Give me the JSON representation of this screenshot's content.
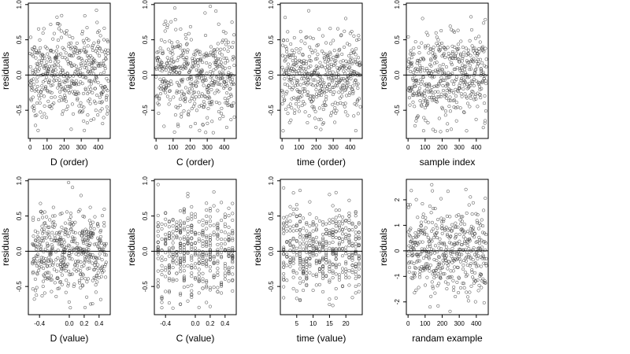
{
  "figure": {
    "layout": "2 rows x 4 columns of residual scatter plots"
  },
  "chart_data": [
    {
      "type": "scatter",
      "xlabel": "D (order)",
      "ylabel": "residuals",
      "xlim": [
        -10,
        470
      ],
      "ylim": [
        -0.9,
        1.02
      ],
      "xticks": [
        0,
        100,
        200,
        300,
        400
      ],
      "xtick_labels": [
        "0",
        "100",
        "200",
        "300",
        "400"
      ],
      "yticks": [
        -0.5,
        0.0,
        0.5,
        1.0
      ],
      "ytick_labels": [
        "-0.5",
        "0.0",
        "0.5",
        "1.0"
      ],
      "hline": 0,
      "x_pattern": "index",
      "n_points": 460,
      "y_range": [
        -0.82,
        0.98
      ],
      "marker": "open-circle"
    },
    {
      "type": "scatter",
      "xlabel": "C (order)",
      "ylabel": "residuals",
      "xlim": [
        -10,
        470
      ],
      "ylim": [
        -0.9,
        1.02
      ],
      "xticks": [
        0,
        100,
        200,
        300,
        400
      ],
      "xtick_labels": [
        "0",
        "100",
        "200",
        "300",
        "400"
      ],
      "yticks": [
        -0.5,
        0.0,
        0.5,
        1.0
      ],
      "ytick_labels": [
        "-0.5",
        "0.0",
        "0.5",
        "1.0"
      ],
      "hline": 0,
      "x_pattern": "index",
      "n_points": 460,
      "y_range": [
        -0.82,
        0.98
      ],
      "marker": "open-circle"
    },
    {
      "type": "scatter",
      "xlabel": "time (order)",
      "ylabel": "residuals",
      "xlim": [
        -10,
        470
      ],
      "ylim": [
        -0.9,
        1.02
      ],
      "xticks": [
        0,
        100,
        200,
        300,
        400
      ],
      "xtick_labels": [
        "0",
        "100",
        "200",
        "300",
        "400"
      ],
      "yticks": [
        -0.5,
        0.0,
        0.5,
        1.0
      ],
      "ytick_labels": [
        "-0.5",
        "0.0",
        "0.5",
        "1.0"
      ],
      "hline": 0,
      "x_pattern": "index",
      "n_points": 460,
      "y_range": [
        -0.82,
        0.98
      ],
      "marker": "open-circle"
    },
    {
      "type": "scatter",
      "xlabel": "sample index",
      "ylabel": "residuals",
      "xlim": [
        -10,
        470
      ],
      "ylim": [
        -0.9,
        1.02
      ],
      "xticks": [
        0,
        100,
        200,
        300,
        400
      ],
      "xtick_labels": [
        "0",
        "100",
        "200",
        "300",
        "400"
      ],
      "yticks": [
        -0.5,
        0.0,
        0.5,
        1.0
      ],
      "ytick_labels": [
        "-0.5",
        "0.0",
        "0.5",
        "1.0"
      ],
      "hline": 0,
      "x_pattern": "index",
      "n_points": 460,
      "y_range": [
        -0.82,
        0.98
      ],
      "marker": "open-circle"
    },
    {
      "type": "scatter",
      "xlabel": "D (value)",
      "ylabel": "residuals",
      "xlim": [
        -0.55,
        0.55
      ],
      "ylim": [
        -0.9,
        1.02
      ],
      "xticks": [
        -0.4,
        0.0,
        0.2,
        0.4
      ],
      "xtick_labels": [
        "-0.4",
        "0.0",
        "0.2",
        "0.4"
      ],
      "yticks": [
        -0.5,
        0.0,
        0.5,
        1.0
      ],
      "ytick_labels": [
        "-0.5",
        "0.0",
        "0.5",
        "1.0"
      ],
      "hline": 0,
      "x_pattern": "continuous",
      "n_points": 460,
      "y_range": [
        -0.82,
        0.98
      ],
      "marker": "open-circle"
    },
    {
      "type": "scatter",
      "xlabel": "C (value)",
      "ylabel": "residuals",
      "xlim": [
        -0.55,
        0.55
      ],
      "ylim": [
        -0.9,
        1.02
      ],
      "xticks": [
        -0.4,
        0.0,
        0.2,
        0.4
      ],
      "xtick_labels": [
        "-0.4",
        "0.0",
        "0.2",
        "0.4"
      ],
      "yticks": [
        -0.5,
        0.0,
        0.5,
        1.0
      ],
      "ytick_labels": [
        "-0.5",
        "0.0",
        "0.5",
        "1.0"
      ],
      "hline": 0,
      "x_pattern": "discrete",
      "x_levels": [
        -0.5,
        -0.45,
        -0.4,
        -0.35,
        -0.3,
        -0.25,
        -0.2,
        -0.15,
        -0.1,
        -0.05,
        0.0,
        0.05,
        0.1,
        0.15,
        0.2,
        0.25,
        0.3,
        0.35,
        0.4,
        0.45,
        0.5
      ],
      "n_points": 460,
      "y_range": [
        -0.82,
        0.98
      ],
      "marker": "open-circle"
    },
    {
      "type": "scatter",
      "xlabel": "time (value)",
      "ylabel": "residuals",
      "xlim": [
        0,
        25
      ],
      "ylim": [
        -0.9,
        1.02
      ],
      "xticks": [
        5,
        10,
        15,
        20
      ],
      "xtick_labels": [
        "5",
        "10",
        "15",
        "20"
      ],
      "yticks": [
        -0.5,
        0.0,
        0.5,
        1.0
      ],
      "ytick_labels": [
        "-0.5",
        "0.0",
        "0.5",
        "1.0"
      ],
      "hline": 0,
      "x_pattern": "discrete",
      "x_levels": [
        1,
        2,
        3,
        4,
        5,
        6,
        7,
        8,
        9,
        10,
        11,
        12,
        13,
        14,
        15,
        16,
        17,
        18,
        19,
        20,
        21,
        22,
        23,
        24
      ],
      "n_points": 460,
      "y_range": [
        -0.82,
        0.98
      ],
      "marker": "open-circle"
    },
    {
      "type": "scatter",
      "xlabel": "randam example",
      "ylabel": "residuals",
      "xlim": [
        -10,
        470
      ],
      "ylim": [
        -2.5,
        2.8
      ],
      "xticks": [
        0,
        100,
        200,
        300,
        400
      ],
      "xtick_labels": [
        "0",
        "100",
        "200",
        "300",
        "400"
      ],
      "yticks": [
        -2,
        -1,
        0,
        1,
        2
      ],
      "ytick_labels": [
        "-2",
        "-1",
        "0",
        "1",
        "2"
      ],
      "hline": 0,
      "x_pattern": "index",
      "n_points": 460,
      "y_range": [
        -2.4,
        2.6
      ],
      "marker": "open-circle"
    }
  ]
}
